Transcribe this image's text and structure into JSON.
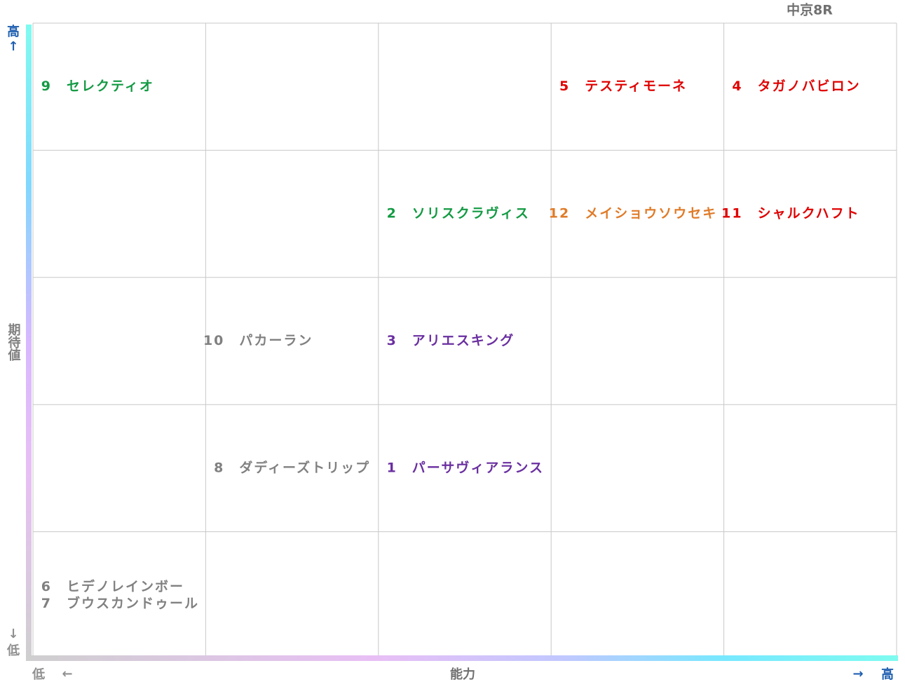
{
  "title": "中京8R",
  "y_axis": {
    "high": "高",
    "arrow_up": "↑",
    "label": "期待値",
    "arrow_down": "↓",
    "low": "低"
  },
  "x_axis": {
    "low": "低",
    "arrow_left": "←",
    "label": "能力",
    "arrow_right": "→",
    "high": "高"
  },
  "grid": {
    "rows": [
      [
        [
          {
            "number": "9",
            "name": "セレクティオ",
            "color": "#139a43"
          }
        ],
        [],
        [],
        [
          {
            "number": "5",
            "name": "テスティモーネ",
            "color": "#e00000"
          }
        ],
        [
          {
            "number": "4",
            "name": "タガノバビロン",
            "color": "#e00000"
          }
        ]
      ],
      [
        [],
        [],
        [
          {
            "number": "2",
            "name": "ソリスクラヴィス",
            "color": "#139a43"
          }
        ],
        [
          {
            "number": "12",
            "name": "メイショウソウセキ",
            "color": "#e07b28"
          }
        ],
        [
          {
            "number": "11",
            "name": "シャルクハフト",
            "color": "#e00000"
          }
        ]
      ],
      [
        [],
        [
          {
            "number": "10",
            "name": "パカーラン",
            "color": "#808080"
          }
        ],
        [
          {
            "number": "3",
            "name": "アリエスキング",
            "color": "#6a2fa0"
          }
        ],
        [],
        []
      ],
      [
        [],
        [
          {
            "number": "8",
            "name": "ダディーズトリップ",
            "color": "#808080"
          }
        ],
        [
          {
            "number": "1",
            "name": "パーサヴィアランス",
            "color": "#6a2fa0"
          }
        ],
        [],
        []
      ],
      [
        [
          {
            "number": "6",
            "name": "ヒデノレインボー",
            "color": "#808080"
          },
          {
            "number": "7",
            "name": "ブウスカンドゥール",
            "color": "#808080"
          }
        ],
        [],
        [],
        [],
        []
      ]
    ]
  }
}
